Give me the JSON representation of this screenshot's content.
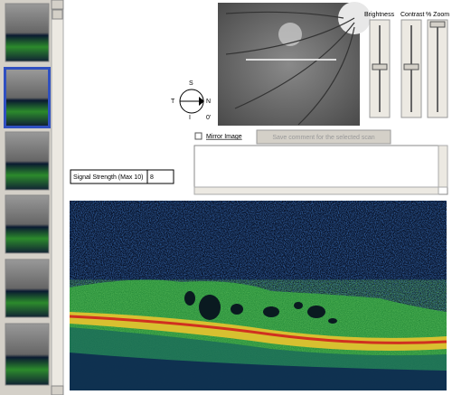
{
  "sliders": {
    "brightness": "Brightness",
    "contrast": "Contrast",
    "zoom": "% Zoom"
  },
  "compass": {
    "top": "S",
    "left": "T",
    "right": "N",
    "bottom": "I",
    "angle": "0'"
  },
  "mirror_label": "Mirror Image",
  "save_button": "Save comment for the selected scan",
  "signal": {
    "label": "Signal Strength (Max 10)",
    "value": 8
  }
}
